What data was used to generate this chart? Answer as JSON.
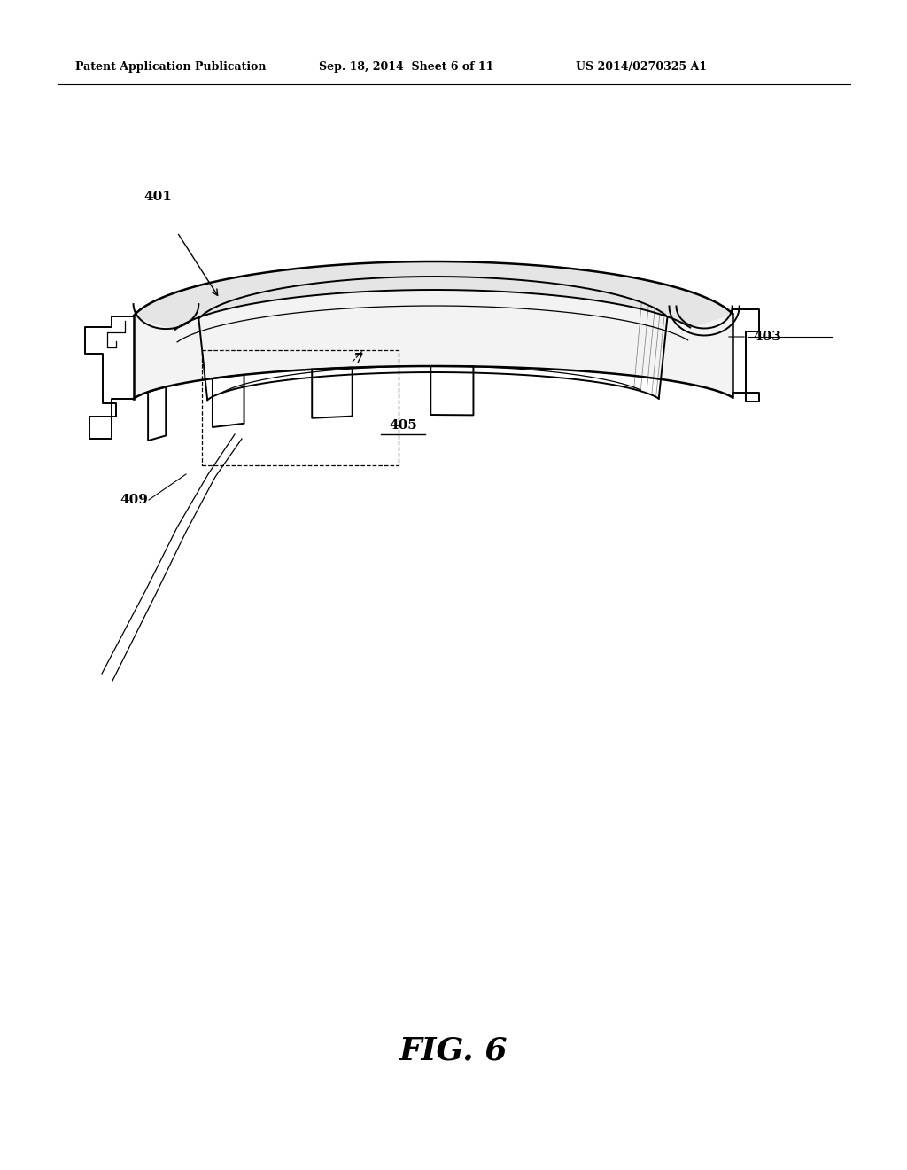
{
  "bg_color": "#ffffff",
  "header_left": "Patent Application Publication",
  "header_mid": "Sep. 18, 2014  Sheet 6 of 11",
  "header_right": "US 2014/0270325 A1",
  "fig_label": "FIG. 6"
}
